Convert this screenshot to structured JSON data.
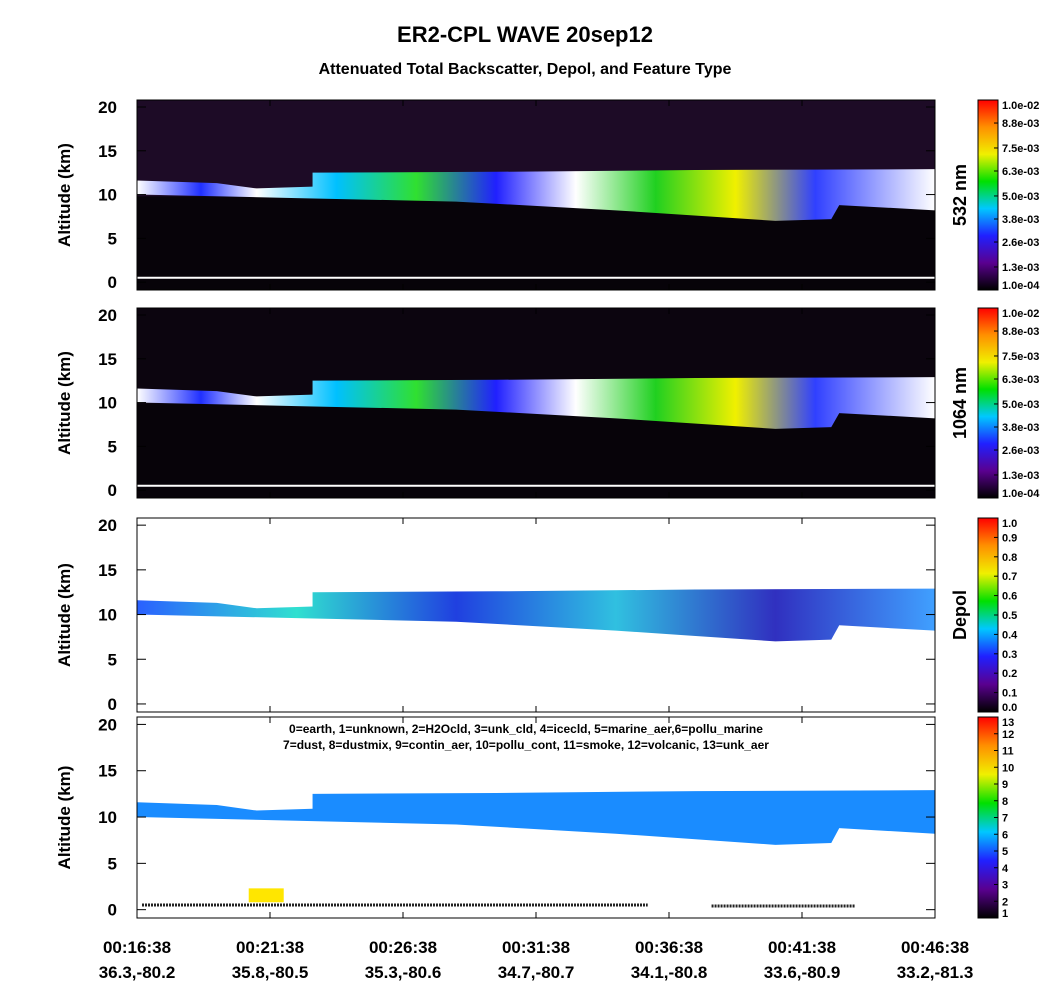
{
  "title": "ER2-CPL WAVE 20sep12",
  "subtitle": "Attenuated Total Backscatter, Depol, and Feature Type",
  "xticks": [
    {
      "time": "00:16:38",
      "location": "36.3,-80.2"
    },
    {
      "time": "00:21:38",
      "location": "35.8,-80.5"
    },
    {
      "time": "00:26:38",
      "location": "35.3,-80.6"
    },
    {
      "time": "00:31:38",
      "location": "34.7,-80.7"
    },
    {
      "time": "00:36:38",
      "location": "34.1,-80.8"
    },
    {
      "time": "00:41:38",
      "location": "33.6,-80.9"
    },
    {
      "time": "00:46:38",
      "location": "33.2,-81.3"
    }
  ],
  "chart_data": [
    {
      "type": "heatmap",
      "ylabel": "Altitude (km)",
      "ylim": [
        -0.9,
        20.8
      ],
      "yticks": [
        0,
        5,
        10,
        15,
        20
      ],
      "colorbar_label": "532 nm",
      "clim": [
        0.0001,
        0.01
      ],
      "colormap": [
        "#000000",
        "#5a0090",
        "#2020ff",
        "#00c8ff",
        "#00e000",
        "#f0f000",
        "#ff9000",
        "#ff0000"
      ],
      "colorbar_ticks": [
        {
          "value": 0.0001,
          "label": "1.0e-04"
        },
        {
          "value": 0.0013,
          "label": "1.3e-03"
        },
        {
          "value": 0.0026,
          "label": "2.6e-03"
        },
        {
          "value": 0.0038,
          "label": "3.8e-03"
        },
        {
          "value": 0.005,
          "label": "5.0e-03"
        },
        {
          "value": 0.0063,
          "label": "6.3e-03"
        },
        {
          "value": 0.0075,
          "label": "7.5e-03"
        },
        {
          "value": 0.0088,
          "label": "8.8e-03"
        },
        {
          "value": 0.01,
          "label": "1.0e-02"
        }
      ]
    },
    {
      "type": "heatmap",
      "ylabel": "Altitude (km)",
      "ylim": [
        -0.9,
        20.8
      ],
      "yticks": [
        0,
        5,
        10,
        15,
        20
      ],
      "colorbar_label": "1064 nm",
      "clim": [
        0.0001,
        0.01
      ],
      "colormap": [
        "#000000",
        "#5a0090",
        "#2020ff",
        "#00c8ff",
        "#00e000",
        "#f0f000",
        "#ff9000",
        "#ff0000"
      ],
      "colorbar_ticks": [
        {
          "value": 0.0001,
          "label": "1.0e-04"
        },
        {
          "value": 0.0013,
          "label": "1.3e-03"
        },
        {
          "value": 0.0026,
          "label": "2.6e-03"
        },
        {
          "value": 0.0038,
          "label": "3.8e-03"
        },
        {
          "value": 0.005,
          "label": "5.0e-03"
        },
        {
          "value": 0.0063,
          "label": "6.3e-03"
        },
        {
          "value": 0.0075,
          "label": "7.5e-03"
        },
        {
          "value": 0.0088,
          "label": "8.8e-03"
        },
        {
          "value": 0.01,
          "label": "1.0e-02"
        }
      ]
    },
    {
      "type": "heatmap",
      "ylabel": "Altitude (km)",
      "ylim": [
        -0.9,
        20.8
      ],
      "yticks": [
        0,
        5,
        10,
        15,
        20
      ],
      "colorbar_label": "Depol",
      "clim": [
        0,
        1
      ],
      "colormap": [
        "#000000",
        "#5a0090",
        "#2020ff",
        "#00c8ff",
        "#00e000",
        "#f0f000",
        "#ff9000",
        "#ff0000"
      ],
      "colorbar_ticks": [
        {
          "value": 0,
          "label": "0.0"
        },
        0.1,
        0.2,
        0.3,
        0.4,
        0.5,
        0.6,
        0.7,
        0.8,
        0.9,
        {
          "value": 1,
          "label": "1.0"
        }
      ]
    },
    {
      "type": "heatmap",
      "ylabel": "Altitude (km)",
      "ylim": [
        -0.9,
        20.8
      ],
      "yticks": [
        0,
        5,
        10,
        15,
        20
      ],
      "clim": [
        1,
        13
      ],
      "colormap": [
        "#000000",
        "#5a0090",
        "#2020ff",
        "#00c8ff",
        "#00e000",
        "#f0f000",
        "#ff9000",
        "#ff0000"
      ],
      "colorbar_ticks": [
        1,
        2,
        3,
        4,
        5,
        6,
        7,
        8,
        9,
        10,
        11,
        12,
        13
      ],
      "annotations": [
        "0=earth, 1=unknown, 2=H2Ocld, 3=unk_cld, 4=icecld, 5=marine_aer,6=pollu_marine",
        "7=dust, 8=dustmix, 9=contin_aer, 10=pollu_cont, 11=smoke, 12=volcanic, 13=unk_aer"
      ]
    }
  ]
}
